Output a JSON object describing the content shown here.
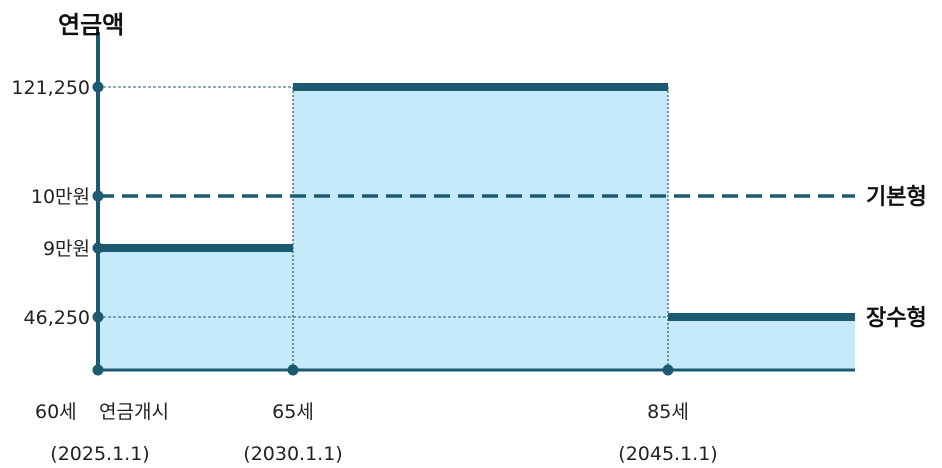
{
  "chart_data": {
    "type": "line",
    "title": "",
    "ylabel": "연금액",
    "xlabel": "",
    "x_range": [
      60,
      90
    ],
    "y_range": [
      0,
      130000
    ],
    "y_ticks": [
      {
        "value": 46250,
        "label": "46,250"
      },
      {
        "value": 90000,
        "label": "9만원"
      },
      {
        "value": 100000,
        "label": "10만원"
      },
      {
        "value": 121250,
        "label": "121,250"
      }
    ],
    "x_ticks": [
      {
        "age": 60,
        "label": "60세",
        "extra": "연금개시",
        "date": "(2025.1.1)"
      },
      {
        "age": 65,
        "label": "65세",
        "extra": "",
        "date": "(2030.1.1)"
      },
      {
        "age": 85,
        "label": "85세",
        "extra": "",
        "date": "(2045.1.1)"
      }
    ],
    "series": [
      {
        "name": "기본형",
        "style": "dashed",
        "color": "#1b5a70",
        "segments": [
          {
            "x0": 60,
            "x1": 90,
            "y": 100000
          }
        ]
      },
      {
        "name": "장수형",
        "style": "solid",
        "color": "#1b5a70",
        "fill": "#c7eafa",
        "segments": [
          {
            "x0": 60,
            "x1": 65,
            "y": 90000
          },
          {
            "x0": 65,
            "x1": 85,
            "y": 121250
          },
          {
            "x0": 85,
            "x1": 90,
            "y": 46250
          }
        ]
      }
    ],
    "grid": false,
    "legend": "right"
  }
}
